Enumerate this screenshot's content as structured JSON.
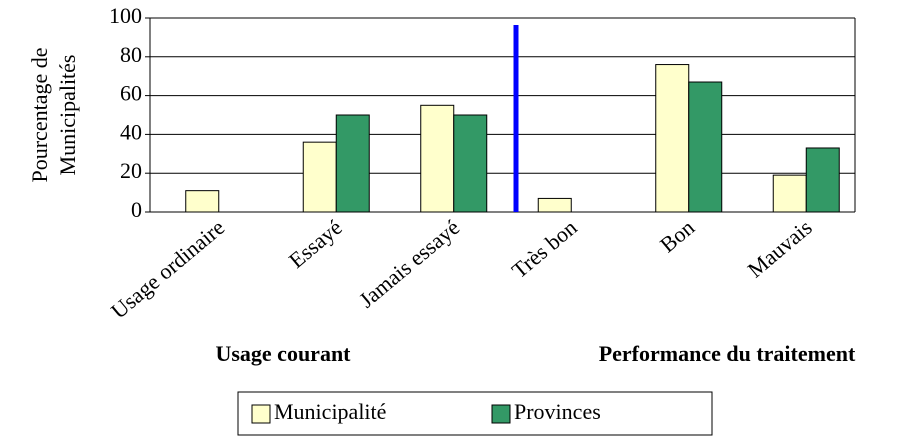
{
  "chart_data": {
    "type": "bar",
    "y_label": [
      "Pourcentage de",
      "Municipalités"
    ],
    "categories": [
      "Usage ordinaire",
      "Essayé",
      "Jamais essayé",
      "Très bon",
      "Bon",
      "Mauvais"
    ],
    "group_labels": [
      "Usage courant",
      "Performance du traitement"
    ],
    "series": [
      {
        "name": "Municipalité",
        "color": "#ffffcc",
        "values": [
          11,
          36,
          55,
          7,
          76,
          19
        ]
      },
      {
        "name": "Provinces",
        "color": "#339966",
        "values": [
          0,
          50,
          50,
          0,
          67,
          33
        ]
      }
    ],
    "ylim": [
      0,
      100
    ],
    "yticks": [
      0,
      20,
      40,
      60,
      80,
      100
    ],
    "grid": true
  }
}
